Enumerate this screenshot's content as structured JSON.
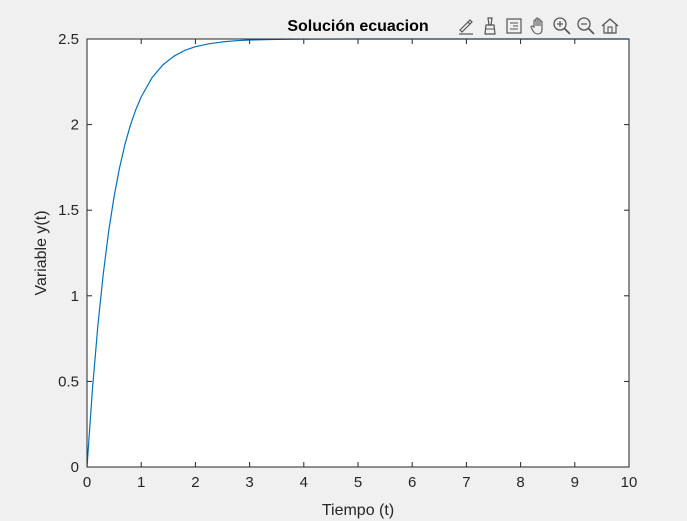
{
  "window": {
    "background": "#f0f0f0"
  },
  "toolbar": {
    "items": [
      {
        "icon": "brush-edit-icon"
      },
      {
        "icon": "data-tip-icon"
      },
      {
        "icon": "legend-icon"
      },
      {
        "icon": "pan-hand-icon"
      },
      {
        "icon": "zoom-in-icon"
      },
      {
        "icon": "zoom-out-icon"
      },
      {
        "icon": "home-icon"
      }
    ]
  },
  "chart_data": {
    "type": "line",
    "title": "Solución ecuacion",
    "xlabel": "Tiempo (t)",
    "ylabel": "Variable y(t)",
    "xlim": [
      0,
      10
    ],
    "ylim": [
      0,
      2.5
    ],
    "xticks": [
      0,
      1,
      2,
      3,
      4,
      5,
      6,
      7,
      8,
      9,
      10
    ],
    "xtick_labels": [
      "0",
      "1",
      "2",
      "3",
      "4",
      "5",
      "6",
      "7",
      "8",
      "9",
      "10"
    ],
    "yticks": [
      0,
      0.5,
      1,
      1.5,
      2,
      2.5
    ],
    "ytick_labels": [
      "0",
      "0.5",
      "1",
      "1.5",
      "2",
      "2.5"
    ],
    "grid": false,
    "line_color": "#0072bd",
    "series": [
      {
        "x": [
          0,
          0.1,
          0.2,
          0.3,
          0.4,
          0.5,
          0.6,
          0.7,
          0.8,
          0.9,
          1.0,
          1.2,
          1.4,
          1.6,
          1.8,
          2.0,
          2.25,
          2.5,
          2.75,
          3.0,
          3.5,
          4.0,
          5.0,
          6.0,
          7.0,
          8.0,
          9.0,
          10.0
        ],
        "y": [
          0,
          0.453,
          0.824,
          1.128,
          1.377,
          1.58,
          1.747,
          1.884,
          1.996,
          2.087,
          2.162,
          2.274,
          2.349,
          2.399,
          2.433,
          2.455,
          2.472,
          2.483,
          2.49,
          2.494,
          2.498,
          2.499,
          2.5,
          2.5,
          2.5,
          2.5,
          2.5,
          2.5
        ]
      }
    ]
  }
}
